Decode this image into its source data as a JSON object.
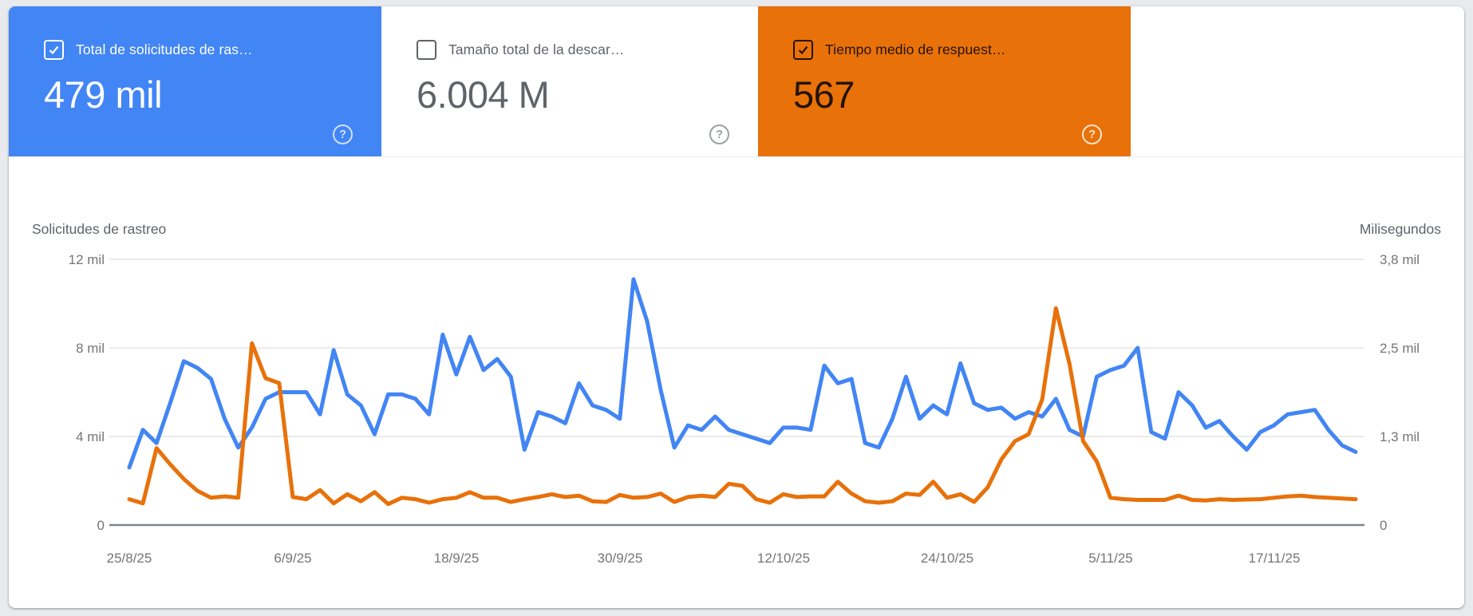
{
  "cards": [
    {
      "id": "total-crawl-requests",
      "label": "Total de solicitudes de ras…",
      "value": "479 mil",
      "checked": true,
      "selected": true,
      "bg_color": "#4285f4",
      "text_color": "#ffffff",
      "help_icon": "?"
    },
    {
      "id": "total-download-size",
      "label": "Tamaño total de la descar…",
      "value": "6.004 M",
      "checked": false,
      "selected": false,
      "bg_color": "#ffffff",
      "text_color": "#5f6368",
      "help_icon": "?"
    },
    {
      "id": "average-response-time",
      "label": "Tiempo medio de respuest…",
      "value": "567",
      "checked": true,
      "selected": true,
      "bg_color": "#e8710a",
      "text_color": "#241302",
      "help_icon": "?"
    }
  ],
  "chart_data": {
    "type": "line",
    "grid": true,
    "legend": "none",
    "axis_title_left": "Solicitudes de rastreo",
    "axis_title_right": "Milisegundos",
    "y_left": {
      "max": 12000,
      "tick_values": [
        0,
        4000,
        8000,
        12000
      ],
      "ticks": [
        "0",
        "4 mil",
        "8 mil",
        "12 mil"
      ]
    },
    "y_right": {
      "max": 3800,
      "tick_values": [
        0,
        1267,
        2533,
        3800
      ],
      "ticks": [
        "0",
        "1,3 mil",
        "2,5 mil",
        "3,8 mil"
      ]
    },
    "x_start_date": "25/8/25",
    "x_tick_days": [
      0,
      12,
      24,
      36,
      48,
      60,
      72,
      84
    ],
    "x_tick_labels": [
      "25/8/25",
      "6/9/25",
      "18/9/25",
      "30/9/25",
      "12/10/25",
      "24/10/25",
      "5/11/25",
      "17/11/25"
    ],
    "series": [
      {
        "name": "Solicitudes de rastreo",
        "axis": "left",
        "color": "#4285f4",
        "values": [
          2600,
          4300,
          3700,
          5500,
          7400,
          7100,
          6600,
          4800,
          3500,
          4400,
          5700,
          6000,
          6000,
          6000,
          5000,
          7900,
          5900,
          5400,
          4100,
          5900,
          5900,
          5700,
          5000,
          8600,
          6800,
          8500,
          7000,
          7500,
          6700,
          3400,
          5100,
          4900,
          4600,
          6400,
          5400,
          5200,
          4800,
          11100,
          9200,
          6100,
          3500,
          4500,
          4300,
          4900,
          4300,
          4100,
          3900,
          3700,
          4400,
          4400,
          4300,
          7200,
          6400,
          6600,
          3700,
          3500,
          4800,
          6700,
          4800,
          5400,
          5000,
          7300,
          5500,
          5200,
          5300,
          4800,
          5100,
          4900,
          5700,
          4300,
          4000,
          6700,
          7000,
          7200,
          8000,
          4200,
          3900,
          6000,
          5400,
          4400,
          4700,
          4000,
          3400,
          4200,
          4500,
          5000,
          5100,
          5200,
          4300,
          3600,
          3300
        ]
      },
      {
        "name": "Tiempo medio de respuesta",
        "axis": "right",
        "color": "#e8710a",
        "values": [
          370,
          310,
          1100,
          870,
          660,
          490,
          390,
          410,
          390,
          2600,
          2100,
          2030,
          400,
          370,
          500,
          310,
          440,
          340,
          470,
          300,
          390,
          370,
          320,
          370,
          390,
          470,
          390,
          390,
          330,
          370,
          400,
          440,
          400,
          420,
          340,
          330,
          430,
          390,
          400,
          450,
          330,
          400,
          420,
          400,
          590,
          560,
          370,
          320,
          440,
          400,
          410,
          410,
          620,
          450,
          340,
          320,
          340,
          450,
          430,
          620,
          390,
          440,
          330,
          540,
          940,
          1200,
          1300,
          1800,
          3100,
          2300,
          1200,
          910,
          390,
          370,
          360,
          360,
          360,
          420,
          360,
          350,
          370,
          360,
          365,
          370,
          390,
          410,
          420,
          400,
          390,
          380,
          370
        ]
      }
    ]
  }
}
